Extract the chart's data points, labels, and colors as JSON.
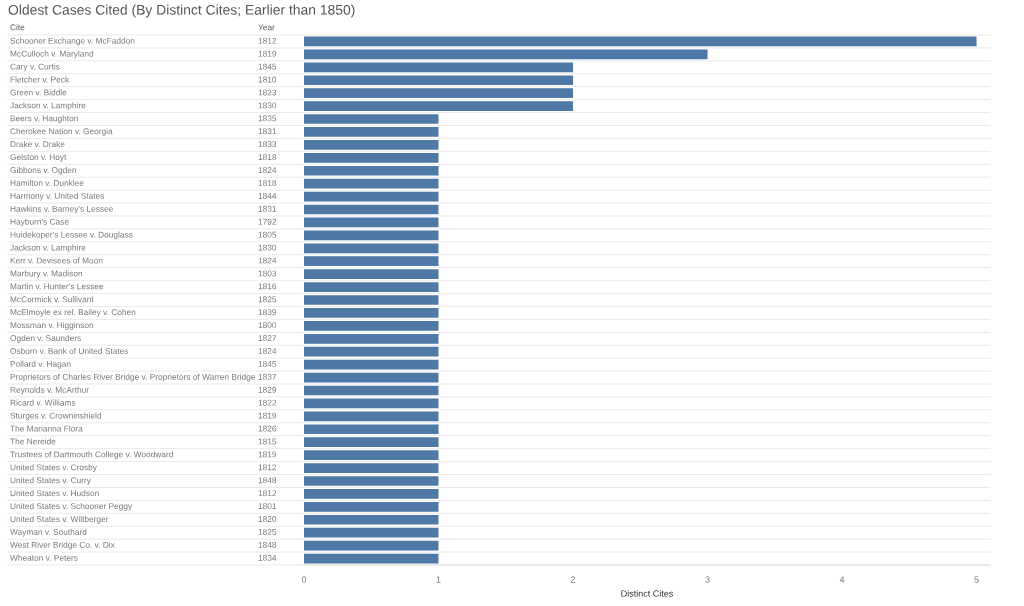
{
  "chart_data": {
    "type": "bar",
    "orientation": "horizontal",
    "title": "Oldest Cases Cited (By Distinct Cites; Earlier than 1850)",
    "xlabel": "Distinct Cites",
    "categories": [
      "Schooner Exchange v. McFaddon",
      "McCulloch v. Maryland",
      "Cary v. Curtis",
      "Fletcher v. Peck",
      "Green v. Biddle",
      "Jackson v. Lamphire",
      "Beers v. Haughton",
      "Cherokee Nation v. Georgia",
      "Drake v. Drake",
      "Gelston v. Hoyt",
      "Gibbons v. Ogden",
      "Hamilton v. Dunklee",
      "Harmony v. United States",
      "Hawkins v. Barney's Lessee",
      "Hayburn's Case",
      "Huidekoper's Lessee v. Douglass",
      "Jackson v. Lamphire",
      "Kerr v. Devisees of Moon",
      "Marbury v. Madison",
      "Martin v. Hunter's Lessee",
      "McCormick v. Sullivant",
      "McElmoyle ex rel. Bailey v. Cohen",
      "Mossman v. Higginson",
      "Ogden v. Saunders",
      "Osborn v. Bank of United States",
      "Pollard v. Hagan",
      "Proprietors of Charles River Bridge v. Proprietors of Warren Bridge",
      "Reynolds v. McArthur",
      "Ricard v. Williams",
      "Sturges v. Crowninshield",
      "The Marianna Flora",
      "The Nereide",
      "Trustees of Dartmouth College v. Woodward",
      "United States v. Crosby",
      "United States v. Curry",
      "United States v. Hudson",
      "United States v. Schooner Peggy",
      "United States v. Wiltberger",
      "Wayman v. Southard",
      "West River Bridge Co. v. Dix",
      "Wheaton v. Peters"
    ],
    "values": [
      5,
      3,
      2,
      2,
      2,
      2,
      1,
      1,
      1,
      1,
      1,
      1,
      1,
      1,
      1,
      1,
      1,
      1,
      1,
      1,
      1,
      1,
      1,
      1,
      1,
      1,
      1,
      1,
      1,
      1,
      1,
      1,
      1,
      1,
      1,
      1,
      1,
      1,
      1,
      1,
      1
    ],
    "color": "#4e79a7",
    "xlim": [
      0,
      5.1
    ],
    "xticks": [
      0,
      1,
      2,
      3,
      4,
      5
    ],
    "grid": false,
    "annotations": [
      "Cite",
      "Year",
      "1812",
      "1819",
      "1845",
      "1810",
      "1823",
      "1830",
      "1835",
      "1831",
      "1833",
      "1818",
      "1824",
      "1818",
      "1844",
      "1831",
      "1792",
      "1805",
      "1830",
      "1824",
      "1803",
      "1816",
      "1825",
      "1839",
      "1800",
      "1827",
      "1824",
      "1845",
      "1837",
      "1829",
      "1822",
      "1819",
      "1826",
      "1815",
      "1819",
      "1812",
      "1848",
      "1812",
      "1801",
      "1820",
      "1825",
      "1848",
      "1834"
    ]
  }
}
